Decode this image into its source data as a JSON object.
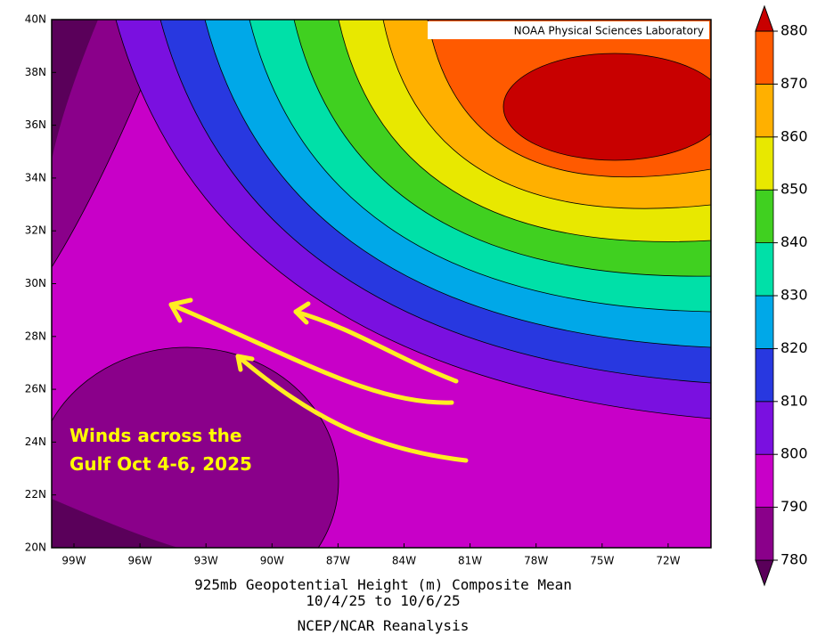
{
  "header": {
    "credit": "NOAA Physical Sciences Laboratory"
  },
  "map": {
    "lat_labels": [
      "20N",
      "22N",
      "24N",
      "26N",
      "28N",
      "30N",
      "32N",
      "34N",
      "36N",
      "38N",
      "40N"
    ],
    "lon_labels": [
      "99W",
      "96W",
      "93W",
      "90W",
      "87W",
      "84W",
      "81W",
      "78W",
      "75W",
      "72W"
    ],
    "annotation": [
      "Winds across the",
      "Gulf Oct 4-6, 2025"
    ]
  },
  "colorbar": {
    "ticks": [
      780,
      790,
      800,
      810,
      820,
      830,
      840,
      850,
      860,
      870,
      880
    ],
    "colors": [
      "#5a005a",
      "#8a008a",
      "#c800c8",
      "#7a10e0",
      "#2838e0",
      "#00a8e8",
      "#00e0a8",
      "#40d020",
      "#e8e800",
      "#ffb000",
      "#ff5a00",
      "#c80000"
    ]
  },
  "footer": {
    "lines": [
      "925mb Geopotential Height (m) Composite Mean",
      "10/4/25  to 10/6/25",
      "NCEP/NCAR Reanalysis"
    ]
  }
}
